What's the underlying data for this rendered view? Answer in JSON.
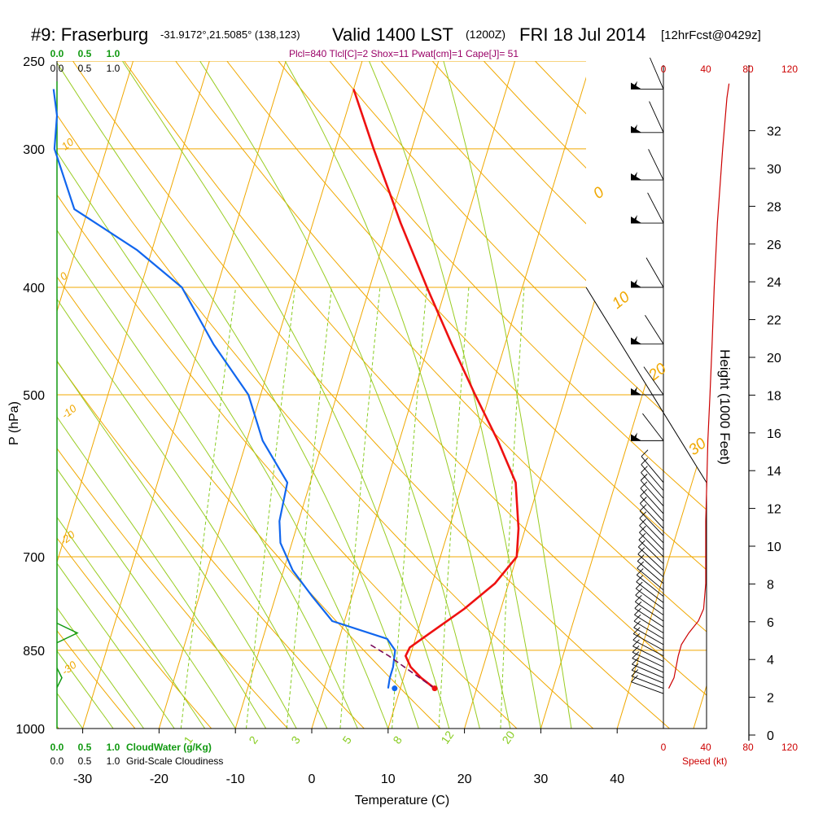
{
  "header": {
    "station": "#9: Fraserburg",
    "coords": "-31.9172°,21.5085° (138,123)",
    "valid": "Valid 1400 LST",
    "utc": "(1200Z)",
    "date": "FRI 18 Jul 2014",
    "forecast": "[12hrFcst@0429z]",
    "indices": "Plcl=840 Tlcl[C]=2 Shox=11 Pwat[cm]=1 Cape[J]= 51"
  },
  "colors": {
    "temperature": "#ee1111",
    "dewpoint": "#1166ee",
    "parcel": "#7a0a5a",
    "isotherm": "#f0a800",
    "dry_adiabat": "#f0a800",
    "moist_adiabat": "#99cc22",
    "mixing_ratio": "#88cc22",
    "cloud": "#119911",
    "wind_speed": "#cc0000",
    "indices_text": "#990066"
  },
  "chart_data": {
    "type": "line",
    "title": "#9: Fraserburg",
    "xlabel": "Temperature (C)",
    "ylabel": "P (hPa)",
    "y2label": "Height (1000 Feet)",
    "skew": "skew-T log-p",
    "xlim": [
      -34,
      46
    ],
    "ylim": [
      1000,
      250
    ],
    "x_ticks": [
      -30,
      -20,
      -10,
      0,
      10,
      20,
      30,
      40
    ],
    "p_ticks": [
      1000,
      850,
      700,
      500,
      400,
      300,
      250
    ],
    "height_ticks": [
      0,
      2,
      4,
      6,
      8,
      10,
      12,
      14,
      16,
      18,
      20,
      22,
      24,
      26,
      28,
      30,
      32
    ],
    "isotherm_labels": [
      "10",
      "0",
      "-10",
      "-20",
      "-30",
      "0",
      "10",
      "20",
      "30"
    ],
    "mixing_ratio_labels": [
      "1",
      "2",
      "3",
      "5",
      "8",
      "12",
      "20"
    ],
    "cloud_axis": {
      "label": "CloudWater (g/Kg)",
      "ticks": [
        "0.0",
        "0.5",
        "1.0"
      ]
    },
    "cloudiness_axis": {
      "label": "Grid-Scale Cloudiness",
      "ticks": [
        "0.0",
        "0.5",
        "1.0"
      ]
    },
    "speed_axis": {
      "label": "Speed (kt)",
      "ticks": [
        "0",
        "40",
        "80",
        "120"
      ]
    },
    "temperature": [
      [
        920,
        14.5
      ],
      [
        900,
        12.3
      ],
      [
        880,
        10.5
      ],
      [
        860,
        9.4
      ],
      [
        845,
        9.6
      ],
      [
        820,
        11.7
      ],
      [
        780,
        15.2
      ],
      [
        740,
        18.2
      ],
      [
        700,
        20.0
      ],
      [
        660,
        19.1
      ],
      [
        600,
        16.9
      ],
      [
        550,
        12.9
      ],
      [
        500,
        8.1
      ],
      [
        450,
        3.0
      ],
      [
        400,
        -2.5
      ],
      [
        350,
        -8.5
      ],
      [
        300,
        -15.0
      ],
      [
        265,
        -20.0
      ]
    ],
    "dewpoint": [
      [
        920,
        8.4
      ],
      [
        900,
        8.2
      ],
      [
        880,
        8.2
      ],
      [
        850,
        7.8
      ],
      [
        830,
        6.3
      ],
      [
        800,
        -1.6
      ],
      [
        760,
        -5.2
      ],
      [
        720,
        -8.8
      ],
      [
        680,
        -11.5
      ],
      [
        650,
        -12.5
      ],
      [
        600,
        -13.0
      ],
      [
        550,
        -17.9
      ],
      [
        500,
        -21.6
      ],
      [
        450,
        -28.2
      ],
      [
        400,
        -34.6
      ],
      [
        370,
        -42.0
      ],
      [
        340,
        -51.8
      ],
      [
        300,
        -56.8
      ],
      [
        280,
        -57.8
      ],
      [
        265,
        -59.3
      ]
    ],
    "parcel": [
      [
        920,
        14.5
      ],
      [
        895,
        11.5
      ],
      [
        860,
        7.2
      ],
      [
        840,
        4.3
      ]
    ],
    "wind_speed": [
      [
        920,
        5
      ],
      [
        900,
        10
      ],
      [
        880,
        12
      ],
      [
        860,
        14
      ],
      [
        840,
        17
      ],
      [
        820,
        24
      ],
      [
        800,
        33
      ],
      [
        780,
        38
      ],
      [
        740,
        40
      ],
      [
        700,
        40
      ],
      [
        650,
        40
      ],
      [
        600,
        41
      ],
      [
        550,
        42
      ],
      [
        500,
        44
      ],
      [
        450,
        46
      ],
      [
        400,
        48
      ],
      [
        350,
        51
      ],
      [
        300,
        56
      ],
      [
        270,
        60
      ],
      [
        262,
        62
      ]
    ],
    "cloud_water": [
      [
        820,
        0.5
      ]
    ]
  }
}
